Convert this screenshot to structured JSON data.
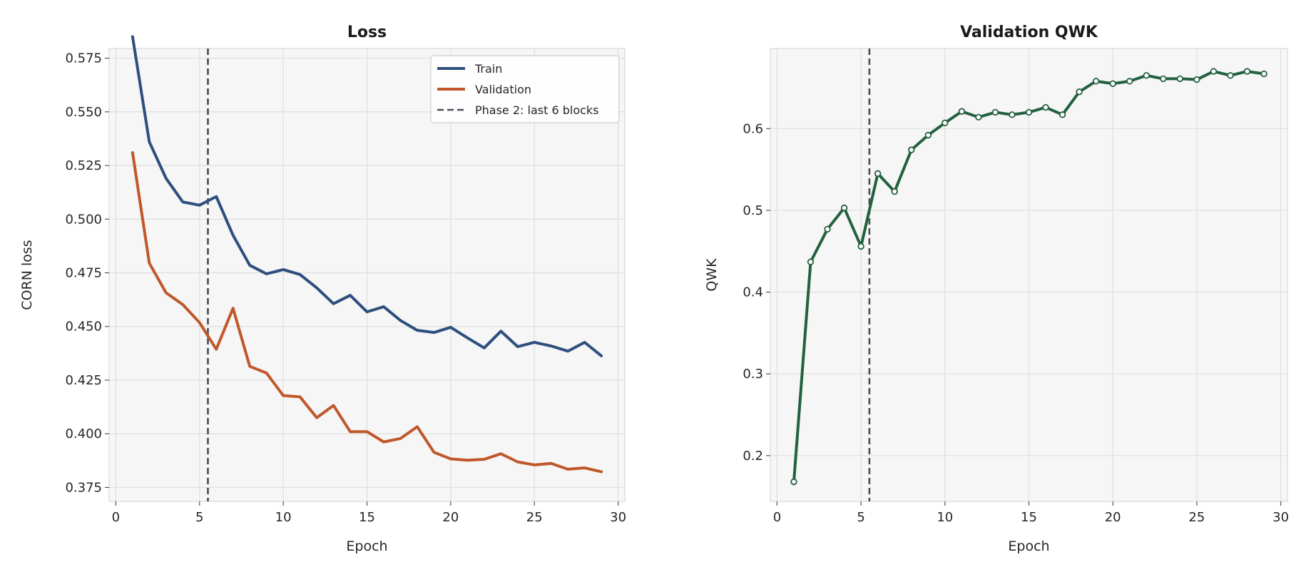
{
  "chart_data": [
    {
      "type": "line",
      "title": "Loss",
      "xlabel": "Epoch",
      "ylabel": "CORN loss",
      "xlim": [
        -0.4,
        30.4
      ],
      "ylim": [
        0.3685,
        0.5795
      ],
      "xticks": [
        0,
        5,
        10,
        15,
        20,
        25,
        30
      ],
      "yticks": [
        0.375,
        0.4,
        0.425,
        0.45,
        0.475,
        0.5,
        0.525,
        0.55,
        0.575
      ],
      "grid": true,
      "legend": "top-right",
      "x": [
        1,
        2,
        3,
        4,
        5,
        6,
        7,
        8,
        9,
        10,
        11,
        12,
        13,
        14,
        15,
        16,
        17,
        18,
        19,
        20,
        21,
        22,
        23,
        24,
        25,
        26,
        27,
        28,
        29
      ],
      "series": [
        {
          "name": "Train",
          "color": "#2e4f7e",
          "values": [
            0.585,
            0.536,
            0.519,
            0.508,
            0.5065,
            0.5105,
            0.4925,
            0.4785,
            0.4745,
            0.4765,
            0.4742,
            0.468,
            0.4606,
            0.4645,
            0.4568,
            0.4592,
            0.4528,
            0.4482,
            0.4472,
            0.4496,
            0.4447,
            0.44,
            0.4478,
            0.4406,
            0.4426,
            0.4409,
            0.4385,
            0.4426,
            0.4363
          ]
        },
        {
          "name": "Validation",
          "color": "#c0582b",
          "values": [
            0.531,
            0.4795,
            0.4657,
            0.4602,
            0.4518,
            0.4394,
            0.4585,
            0.4314,
            0.4283,
            0.4178,
            0.4172,
            0.4075,
            0.4132,
            0.401,
            0.401,
            0.3962,
            0.3978,
            0.4033,
            0.3914,
            0.3883,
            0.3877,
            0.3881,
            0.3907,
            0.3869,
            0.3855,
            0.3862,
            0.3835,
            0.3841,
            0.3823
          ]
        }
      ],
      "vline": {
        "x": 5.5,
        "label": "Phase 2: last 6 blocks",
        "color": "#4b4b57"
      }
    },
    {
      "type": "line",
      "title": "Validation QWK",
      "xlabel": "Epoch",
      "ylabel": "QWK",
      "xlim": [
        -0.4,
        30.4
      ],
      "ylim": [
        0.144,
        0.698
      ],
      "xticks": [
        0,
        5,
        10,
        15,
        20,
        25,
        30
      ],
      "yticks": [
        0.2,
        0.3,
        0.4,
        0.5,
        0.6
      ],
      "grid": true,
      "x": [
        1,
        2,
        3,
        4,
        5,
        6,
        7,
        8,
        9,
        10,
        11,
        12,
        13,
        14,
        15,
        16,
        17,
        18,
        19,
        20,
        21,
        22,
        23,
        24,
        25,
        26,
        27,
        28,
        29
      ],
      "series": [
        {
          "color": "#24613f",
          "markers": true,
          "values": [
            0.168,
            0.437,
            0.477,
            0.503,
            0.456,
            0.545,
            0.523,
            0.574,
            0.592,
            0.607,
            0.621,
            0.614,
            0.62,
            0.617,
            0.62,
            0.626,
            0.617,
            0.645,
            0.658,
            0.655,
            0.658,
            0.665,
            0.661,
            0.661,
            0.66,
            0.67,
            0.665,
            0.67,
            0.667
          ]
        }
      ],
      "vline": {
        "x": 5.5,
        "color": "#4b4b57"
      }
    }
  ]
}
